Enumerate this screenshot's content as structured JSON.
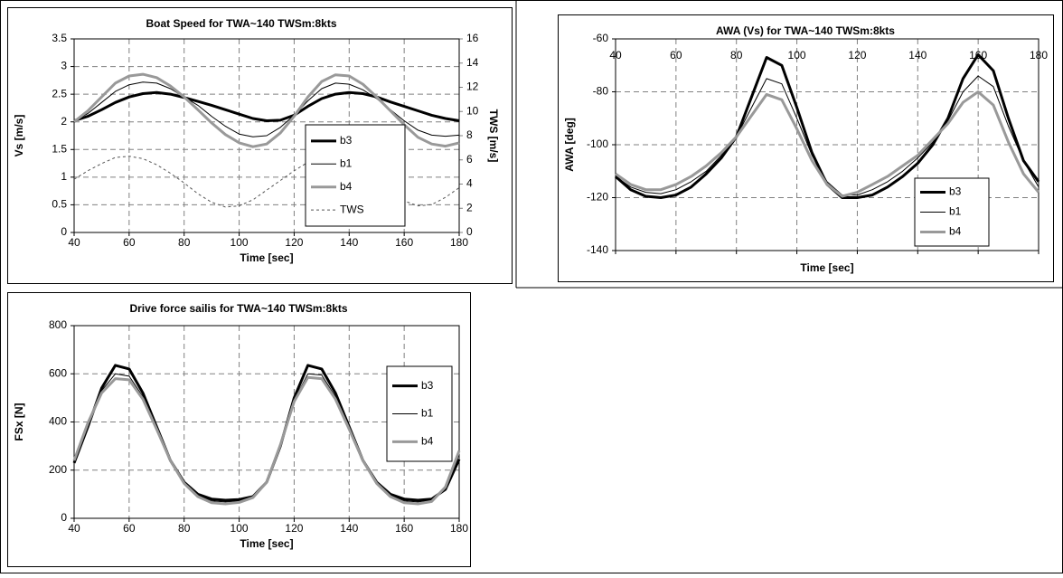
{
  "chart_data": [
    {
      "type": "line",
      "title": "Boat Speed for TWA~140 TWSm:8kts",
      "x_label": "Time [sec]",
      "y_label": "Vs [m/s]",
      "y2_label": "TWS [m/s]",
      "x": [
        40,
        45,
        50,
        55,
        60,
        65,
        70,
        75,
        80,
        85,
        90,
        95,
        100,
        105,
        110,
        115,
        120,
        125,
        130,
        135,
        140,
        145,
        150,
        155,
        160,
        165,
        170,
        175,
        180
      ],
      "xlim": [
        40,
        180
      ],
      "xticks": [
        40,
        60,
        80,
        100,
        120,
        140,
        160,
        180
      ],
      "ylim": [
        0,
        3.5
      ],
      "yticks": [
        0,
        0.5,
        1,
        1.5,
        2,
        2.5,
        3,
        3.5
      ],
      "y2lim": [
        0,
        16
      ],
      "y2ticks": [
        0,
        2,
        4,
        6,
        8,
        10,
        12,
        14,
        16
      ],
      "y2_color": "#808080",
      "grid": true,
      "x_tick_labels": "bottom",
      "series": [
        {
          "name": "b3",
          "color": "#000000",
          "width": 3,
          "dash": false,
          "values": [
            2.02,
            2.1,
            2.22,
            2.35,
            2.45,
            2.51,
            2.53,
            2.5,
            2.44,
            2.37,
            2.3,
            2.22,
            2.14,
            2.06,
            2.02,
            2.03,
            2.12,
            2.28,
            2.42,
            2.5,
            2.53,
            2.51,
            2.45,
            2.36,
            2.28,
            2.2,
            2.12,
            2.06,
            2.02
          ]
        },
        {
          "name": "b1",
          "color": "#000000",
          "width": 1,
          "dash": false,
          "values": [
            2.02,
            2.15,
            2.35,
            2.55,
            2.67,
            2.72,
            2.7,
            2.6,
            2.45,
            2.3,
            2.1,
            1.92,
            1.78,
            1.73,
            1.75,
            1.9,
            2.12,
            2.38,
            2.6,
            2.7,
            2.68,
            2.58,
            2.42,
            2.22,
            2.02,
            1.85,
            1.76,
            1.74,
            1.76
          ]
        },
        {
          "name": "b4",
          "color": "#999999",
          "width": 3,
          "dash": false,
          "values": [
            2.0,
            2.2,
            2.45,
            2.7,
            2.83,
            2.86,
            2.8,
            2.65,
            2.45,
            2.22,
            1.98,
            1.77,
            1.62,
            1.55,
            1.6,
            1.8,
            2.1,
            2.45,
            2.73,
            2.85,
            2.83,
            2.68,
            2.45,
            2.2,
            1.95,
            1.72,
            1.6,
            1.56,
            1.62
          ]
        },
        {
          "name": "TWS",
          "color": "#555555",
          "width": 1,
          "dash": true,
          "axis": "y2",
          "values": [
            4.4,
            5.1,
            5.7,
            6.2,
            6.3,
            6.1,
            5.6,
            4.9,
            4.1,
            3.2,
            2.5,
            2.1,
            2.2,
            2.7,
            3.5,
            4.3,
            5.1,
            5.8,
            6.2,
            6.2,
            5.8,
            5.1,
            4.3,
            3.4,
            2.6,
            2.2,
            2.3,
            2.9,
            3.7
          ]
        }
      ]
    },
    {
      "type": "line",
      "title": "AWA (Vs) for TWA~140 TWSm:8kts",
      "x_label": "Time [sec]",
      "y_label": "AWA [deg]",
      "x": [
        40,
        45,
        50,
        55,
        60,
        65,
        70,
        75,
        80,
        85,
        90,
        95,
        100,
        105,
        110,
        115,
        120,
        125,
        130,
        135,
        140,
        145,
        150,
        155,
        160,
        165,
        170,
        175,
        180
      ],
      "xlim": [
        40,
        180
      ],
      "xticks": [
        40,
        60,
        80,
        100,
        120,
        140,
        160,
        180
      ],
      "ylim": [
        -140,
        -60
      ],
      "yticks": [
        -140,
        -120,
        -100,
        -80,
        -60
      ],
      "grid": true,
      "x_tick_labels": "top",
      "series": [
        {
          "name": "b3",
          "color": "#000000",
          "width": 3,
          "dash": false,
          "values": [
            -112,
            -117,
            -119.5,
            -120,
            -119,
            -116,
            -111,
            -105,
            -97,
            -82,
            -67,
            -70,
            -86,
            -103,
            -115,
            -120,
            -120,
            -119,
            -116,
            -112,
            -107,
            -100,
            -90,
            -75,
            -66,
            -72,
            -90,
            -106,
            -114
          ]
        },
        {
          "name": "b1",
          "color": "#000000",
          "width": 1,
          "dash": false,
          "values": [
            -112,
            -116,
            -118,
            -118.5,
            -117,
            -114,
            -110,
            -104,
            -97,
            -86,
            -75,
            -77,
            -90,
            -104,
            -114,
            -119,
            -119,
            -117,
            -114,
            -110,
            -105,
            -99,
            -91,
            -80,
            -74,
            -78,
            -93,
            -106,
            -116
          ]
        },
        {
          "name": "b4",
          "color": "#999999",
          "width": 3,
          "dash": false,
          "values": [
            -111,
            -115,
            -117,
            -117,
            -115,
            -112,
            -108,
            -103,
            -97,
            -89,
            -81,
            -83,
            -94,
            -106,
            -115,
            -119.5,
            -118,
            -115,
            -112,
            -108,
            -104,
            -98,
            -92,
            -84,
            -80,
            -85,
            -99,
            -111,
            -118
          ]
        }
      ]
    },
    {
      "type": "line",
      "title": "Drive force sailis for TWA~140 TWSm:8kts",
      "x_label": "Time [sec]",
      "y_label": "FSx [N]",
      "x": [
        40,
        45,
        50,
        55,
        60,
        65,
        70,
        75,
        80,
        85,
        90,
        95,
        100,
        105,
        110,
        115,
        120,
        125,
        130,
        135,
        140,
        145,
        150,
        155,
        160,
        165,
        170,
        175,
        180
      ],
      "xlim": [
        40,
        180
      ],
      "xticks": [
        40,
        60,
        80,
        100,
        120,
        140,
        160,
        180
      ],
      "ylim": [
        0,
        800
      ],
      "yticks": [
        0,
        200,
        400,
        600,
        800
      ],
      "grid": true,
      "x_tick_labels": "bottom",
      "series": [
        {
          "name": "b3",
          "color": "#000000",
          "width": 3,
          "dash": false,
          "values": [
            230,
            380,
            540,
            635,
            620,
            520,
            380,
            240,
            150,
            100,
            80,
            75,
            78,
            90,
            150,
            300,
            500,
            635,
            620,
            520,
            380,
            240,
            150,
            100,
            80,
            75,
            80,
            120,
            245
          ]
        },
        {
          "name": "b1",
          "color": "#000000",
          "width": 1,
          "dash": false,
          "values": [
            235,
            390,
            530,
            600,
            590,
            505,
            375,
            240,
            148,
            95,
            72,
            68,
            72,
            88,
            150,
            300,
            490,
            600,
            595,
            505,
            375,
            240,
            148,
            95,
            72,
            68,
            75,
            125,
            265
          ]
        },
        {
          "name": "b4",
          "color": "#999999",
          "width": 3,
          "dash": false,
          "values": [
            240,
            395,
            520,
            580,
            575,
            495,
            370,
            240,
            145,
            90,
            65,
            60,
            66,
            86,
            150,
            305,
            485,
            585,
            580,
            495,
            370,
            240,
            145,
            90,
            65,
            60,
            70,
            130,
            280
          ]
        }
      ]
    }
  ]
}
